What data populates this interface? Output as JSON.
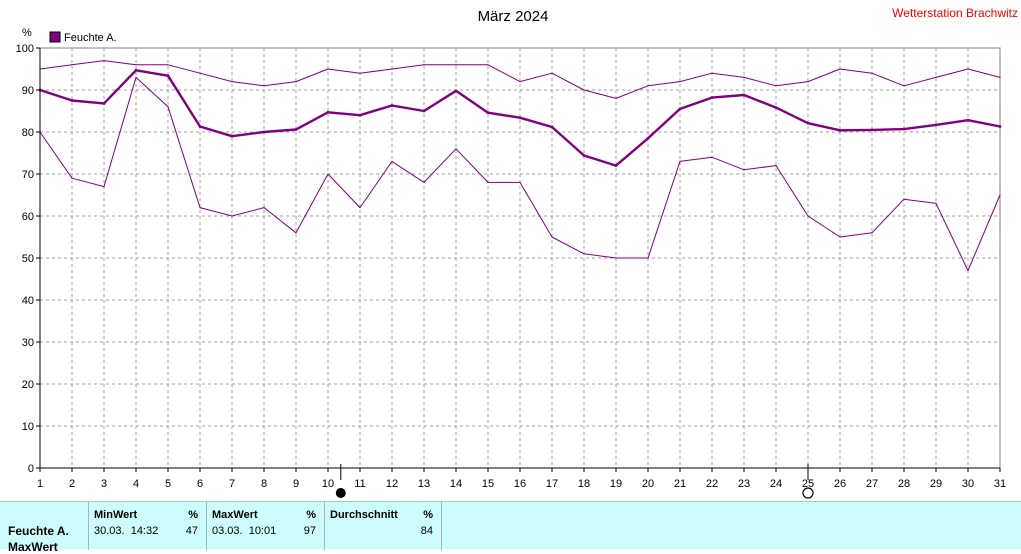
{
  "chart_data": {
    "type": "line",
    "title": "März 2024",
    "station": "Wetterstation Brachwitz",
    "ylabel": "%",
    "ylim": [
      0,
      100
    ],
    "yticks": [
      0,
      10,
      20,
      30,
      40,
      50,
      60,
      70,
      80,
      90,
      100
    ],
    "x": [
      1,
      2,
      3,
      4,
      5,
      6,
      7,
      8,
      9,
      10,
      11,
      12,
      13,
      14,
      15,
      16,
      17,
      18,
      19,
      20,
      21,
      22,
      23,
      24,
      25,
      26,
      27,
      28,
      29,
      30,
      31
    ],
    "grid": true,
    "legend": {
      "position": "top-left",
      "label": "Feuchte A."
    },
    "colors": {
      "series": "#800080",
      "legend_box": "#800080",
      "station": "#ff0000",
      "grid": "#a0a0a0"
    },
    "moon_phases": [
      {
        "x": 10.4,
        "phase": "new-moon"
      },
      {
        "x": 25.0,
        "phase": "full-moon"
      }
    ],
    "series": [
      {
        "role": "max",
        "values": [
          95,
          96,
          97,
          96,
          96,
          94,
          92,
          91,
          92,
          95,
          94,
          95,
          96,
          96,
          96,
          92,
          94,
          90,
          88,
          91,
          92,
          94,
          93,
          91,
          92,
          95,
          94,
          91,
          93,
          95,
          93
        ]
      },
      {
        "role": "avg",
        "values": [
          90,
          87.5,
          86.8,
          94.7,
          93.4,
          81.3,
          79,
          80,
          80.6,
          84.7,
          84,
          86.3,
          85,
          89.8,
          84.6,
          83.4,
          81.2,
          74.4,
          72,
          78.5,
          85.5,
          88.2,
          88.8,
          85.8,
          82.1,
          80.4,
          80.5,
          80.7,
          81.7,
          82.8,
          81.3
        ]
      },
      {
        "role": "min",
        "values": [
          80,
          69,
          67,
          93,
          86,
          62,
          60,
          62,
          56,
          70,
          62,
          73,
          68,
          76,
          68,
          68,
          55,
          51,
          50,
          50,
          73,
          74,
          71,
          72,
          60,
          55,
          56,
          64,
          63,
          47,
          65
        ]
      }
    ]
  },
  "stats": {
    "row_label_1": "Feuchte A.",
    "row_label_2": "MaxWert",
    "min": {
      "header": "MinWert",
      "unit": "%",
      "when": "30.03.  14:32",
      "value": "47"
    },
    "max": {
      "header": "MaxWert",
      "unit": "%",
      "when": "03.03.  10:01",
      "value": "97"
    },
    "avg": {
      "header": "Durchschnitt",
      "unit": "%",
      "value": "84"
    }
  }
}
